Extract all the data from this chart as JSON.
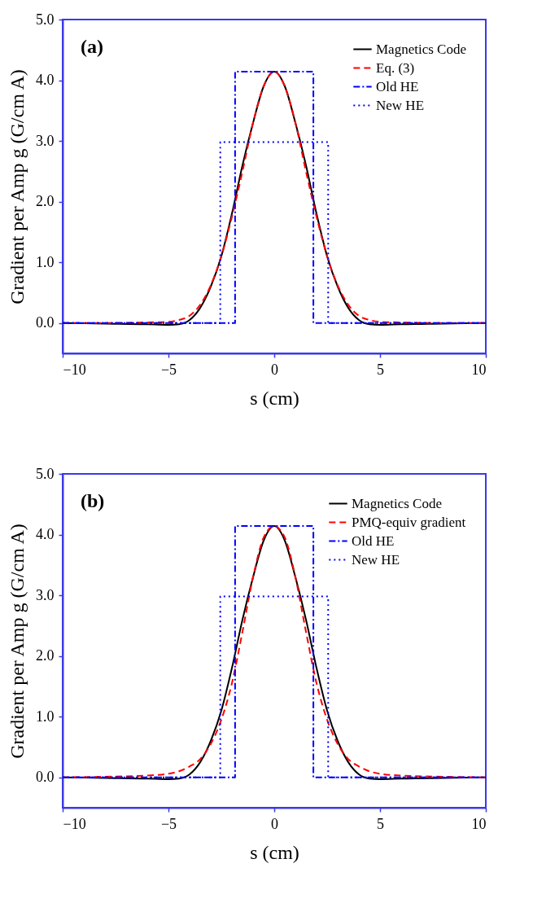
{
  "chart_data": [
    {
      "type": "line",
      "annotations": [
        "(a)"
      ],
      "xlabel": "s (cm)",
      "ylabel": "Gradient per Amp g (G/cm A)",
      "xlim": [
        -10,
        10
      ],
      "xticks": [
        -10,
        -5,
        0,
        5,
        10
      ],
      "ylim": [
        -0.5,
        5.0
      ],
      "yticks": [
        {
          "value": 0,
          "label": "0.0"
        },
        {
          "value": 1,
          "label": "1.0"
        },
        {
          "value": 2,
          "label": "2.0"
        },
        {
          "value": 3,
          "label": "3.0"
        },
        {
          "value": 4,
          "label": "4.0"
        },
        {
          "value": 5,
          "label": "5.0"
        }
      ],
      "legend": "top right",
      "series": [
        {
          "name": "Magnetics Code",
          "color": "#000000",
          "line_style": "solid",
          "x": [
            -10,
            -8,
            -6,
            -5,
            -4.5,
            -4,
            -3.5,
            -3,
            -2.5,
            -2,
            -1.5,
            -1,
            -0.5,
            0,
            0.5,
            1,
            1.5,
            2,
            2.5,
            3,
            3.5,
            4,
            4.5,
            5,
            6,
            8,
            10
          ],
          "values": [
            0,
            -0.01,
            -0.02,
            -0.03,
            -0.02,
            0.05,
            0.25,
            0.6,
            1.1,
            1.8,
            2.6,
            3.3,
            3.9,
            4.14,
            3.9,
            3.3,
            2.6,
            1.8,
            1.1,
            0.6,
            0.25,
            0.05,
            -0.02,
            -0.03,
            -0.02,
            -0.01,
            0
          ]
        },
        {
          "name": "Eq. (3)",
          "color": "#ff0000",
          "line_style": "dashed",
          "x": [
            -10,
            -8,
            -6,
            -5,
            -4.5,
            -4,
            -3.5,
            -3,
            -2.5,
            -2,
            -1.5,
            -1,
            -0.5,
            0,
            0.5,
            1,
            1.5,
            2,
            2.5,
            3,
            3.5,
            4,
            4.5,
            5,
            6,
            8,
            10
          ],
          "values": [
            0,
            0,
            0.01,
            0.02,
            0.05,
            0.12,
            0.3,
            0.62,
            1.1,
            1.75,
            2.5,
            3.3,
            3.9,
            4.14,
            3.9,
            3.3,
            2.5,
            1.75,
            1.1,
            0.62,
            0.3,
            0.12,
            0.05,
            0.02,
            0.01,
            0,
            0
          ]
        },
        {
          "name": "Old HE",
          "color": "#0000ff",
          "line_style": "dashdot",
          "x": [
            -10,
            -1.85,
            -1.85,
            1.85,
            1.85,
            10
          ],
          "values": [
            0,
            0,
            4.14,
            4.14,
            0,
            0
          ]
        },
        {
          "name": "New HE",
          "color": "#0000ff",
          "line_style": "dotted",
          "x": [
            -10,
            -2.55,
            -2.55,
            2.55,
            2.55,
            10
          ],
          "values": [
            0,
            0,
            2.98,
            2.98,
            0,
            0
          ]
        }
      ]
    },
    {
      "type": "line",
      "annotations": [
        "(b)"
      ],
      "xlabel": "s (cm)",
      "ylabel": "Gradient per Amp g (G/cm A)",
      "xlim": [
        -10,
        10
      ],
      "xticks": [
        -10,
        -5,
        0,
        5,
        10
      ],
      "ylim": [
        -0.5,
        5.0
      ],
      "yticks": [
        {
          "value": 0,
          "label": "0.0"
        },
        {
          "value": 1,
          "label": "1.0"
        },
        {
          "value": 2,
          "label": "2.0"
        },
        {
          "value": 3,
          "label": "3.0"
        },
        {
          "value": 4,
          "label": "4.0"
        },
        {
          "value": 5,
          "label": "5.0"
        }
      ],
      "legend": "top right",
      "series": [
        {
          "name": "Magnetics Code",
          "color": "#000000",
          "line_style": "solid",
          "x": [
            -10,
            -8,
            -6,
            -5,
            -4.5,
            -4,
            -3.5,
            -3,
            -2.5,
            -2,
            -1.5,
            -1,
            -0.5,
            0,
            0.5,
            1,
            1.5,
            2,
            2.5,
            3,
            3.5,
            4,
            4.5,
            5,
            6,
            8,
            10
          ],
          "values": [
            0,
            -0.01,
            -0.02,
            -0.03,
            -0.02,
            0.05,
            0.25,
            0.6,
            1.1,
            1.8,
            2.6,
            3.3,
            3.9,
            4.14,
            3.9,
            3.3,
            2.6,
            1.8,
            1.1,
            0.6,
            0.25,
            0.05,
            -0.02,
            -0.03,
            -0.02,
            -0.01,
            0
          ]
        },
        {
          "name": "PMQ-equiv gradient",
          "color": "#ff0000",
          "line_style": "dashed",
          "x": [
            -10,
            -8,
            -6,
            -5,
            -4.5,
            -4,
            -3.5,
            -3,
            -2.5,
            -2,
            -1.5,
            -1,
            -0.5,
            0,
            0.5,
            1,
            1.5,
            2,
            2.5,
            3,
            3.5,
            4,
            4.5,
            5,
            6,
            8,
            10
          ],
          "values": [
            0,
            0.01,
            0.03,
            0.06,
            0.1,
            0.18,
            0.3,
            0.55,
            0.95,
            1.55,
            2.4,
            3.3,
            3.95,
            4.14,
            3.95,
            3.3,
            2.4,
            1.55,
            0.95,
            0.55,
            0.3,
            0.18,
            0.1,
            0.06,
            0.03,
            0.01,
            0
          ]
        },
        {
          "name": "Old HE",
          "color": "#0000ff",
          "line_style": "dashdot",
          "x": [
            -10,
            -1.85,
            -1.85,
            1.85,
            1.85,
            10
          ],
          "values": [
            0,
            0,
            4.14,
            4.14,
            0,
            0
          ]
        },
        {
          "name": "New HE",
          "color": "#0000ff",
          "line_style": "dotted",
          "x": [
            -10,
            -2.55,
            -2.55,
            2.55,
            2.55,
            10
          ],
          "values": [
            0,
            0,
            2.98,
            2.98,
            0,
            0
          ]
        }
      ]
    }
  ]
}
